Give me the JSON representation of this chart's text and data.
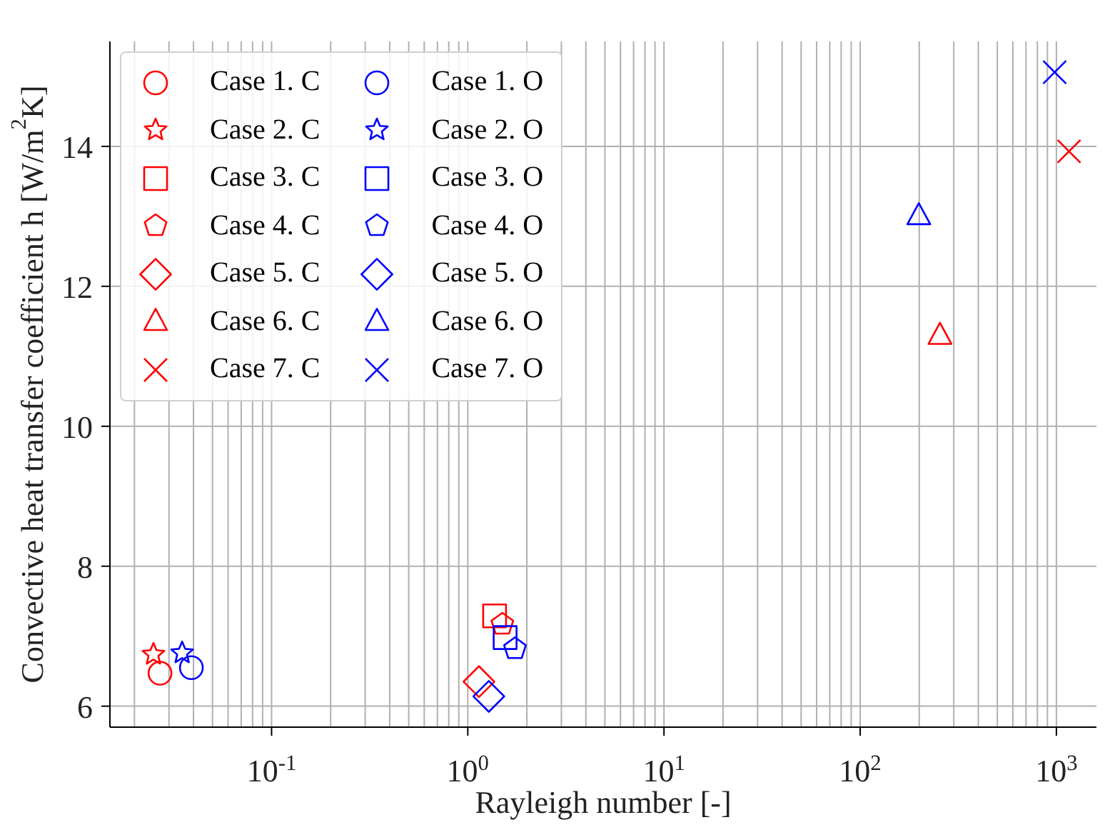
{
  "chart_data": {
    "type": "scatter",
    "xlabel": "Rayleigh number [-]",
    "ylabel": "Convective heat transfer coefficient h [W/m$^{2}$K]",
    "xlim": [
      0.015,
      1600
    ],
    "ylim": [
      5.7,
      15.5
    ],
    "log": "x",
    "grid": true,
    "legend": "top left",
    "xticks": [
      {
        "value": 0.1,
        "label": "10$^{-1}$"
      },
      {
        "value": 1,
        "label": "10$^{0}$"
      },
      {
        "value": 10,
        "label": "10$^{1}$"
      },
      {
        "value": 100,
        "label": "10$^{2}$"
      },
      {
        "value": 1000,
        "label": "10$^{3}$"
      }
    ],
    "yticks": [
      6,
      8,
      10,
      12,
      14
    ],
    "series": [
      {
        "name": "Case 1. C",
        "color": "#ff0000",
        "marker": "circle",
        "x": [
          0.027
        ],
        "values": [
          6.47
        ]
      },
      {
        "name": "Case 2. C",
        "color": "#ff0000",
        "marker": "star",
        "x": [
          0.025
        ],
        "values": [
          6.74
        ]
      },
      {
        "name": "Case 3. C",
        "color": "#ff0000",
        "marker": "square",
        "x": [
          1.37
        ],
        "values": [
          7.29
        ]
      },
      {
        "name": "Case 4. C",
        "color": "#ff0000",
        "x": [
          1.5
        ],
        "values": [
          7.17
        ]
      },
      {
        "name": "Case 5. C",
        "color": "#ff0000",
        "marker": "diamond",
        "x": [
          1.14
        ],
        "values": [
          6.35
        ]
      },
      {
        "name": "Case 6. C",
        "color": "#ff0000",
        "marker": "triangle",
        "x": [
          255
        ],
        "values": [
          11.3
        ]
      },
      {
        "name": "Case 7. C",
        "color": "#ff0000",
        "marker": "cross",
        "x": [
          1160
        ],
        "values": [
          13.93
        ]
      },
      {
        "name": "Case 1. O",
        "color": "#0000ff",
        "marker": "circle",
        "x": [
          0.039
        ],
        "values": [
          6.55
        ]
      },
      {
        "name": "Case 2. O",
        "color": "#0000ff",
        "marker": "star",
        "x": [
          0.035
        ],
        "values": [
          6.76
        ]
      },
      {
        "name": "Case 3. O",
        "color": "#0000ff",
        "marker": "square",
        "x": [
          1.55
        ],
        "values": [
          6.98
        ]
      },
      {
        "name": "Case 4. O",
        "color": "#0000ff",
        "x": [
          1.74
        ],
        "values": [
          6.82
        ]
      },
      {
        "name": "Case 5. O",
        "color": "#0000ff",
        "marker": "diamond",
        "x": [
          1.28
        ],
        "values": [
          6.14
        ]
      },
      {
        "name": "Case 6. O",
        "color": "#0000ff",
        "marker": "triangle",
        "x": [
          199
        ],
        "values": [
          13.01
        ]
      },
      {
        "name": "Case 7. O",
        "color": "#0000ff",
        "marker": "cross",
        "x": [
          980
        ],
        "values": [
          15.06
        ]
      }
    ]
  }
}
